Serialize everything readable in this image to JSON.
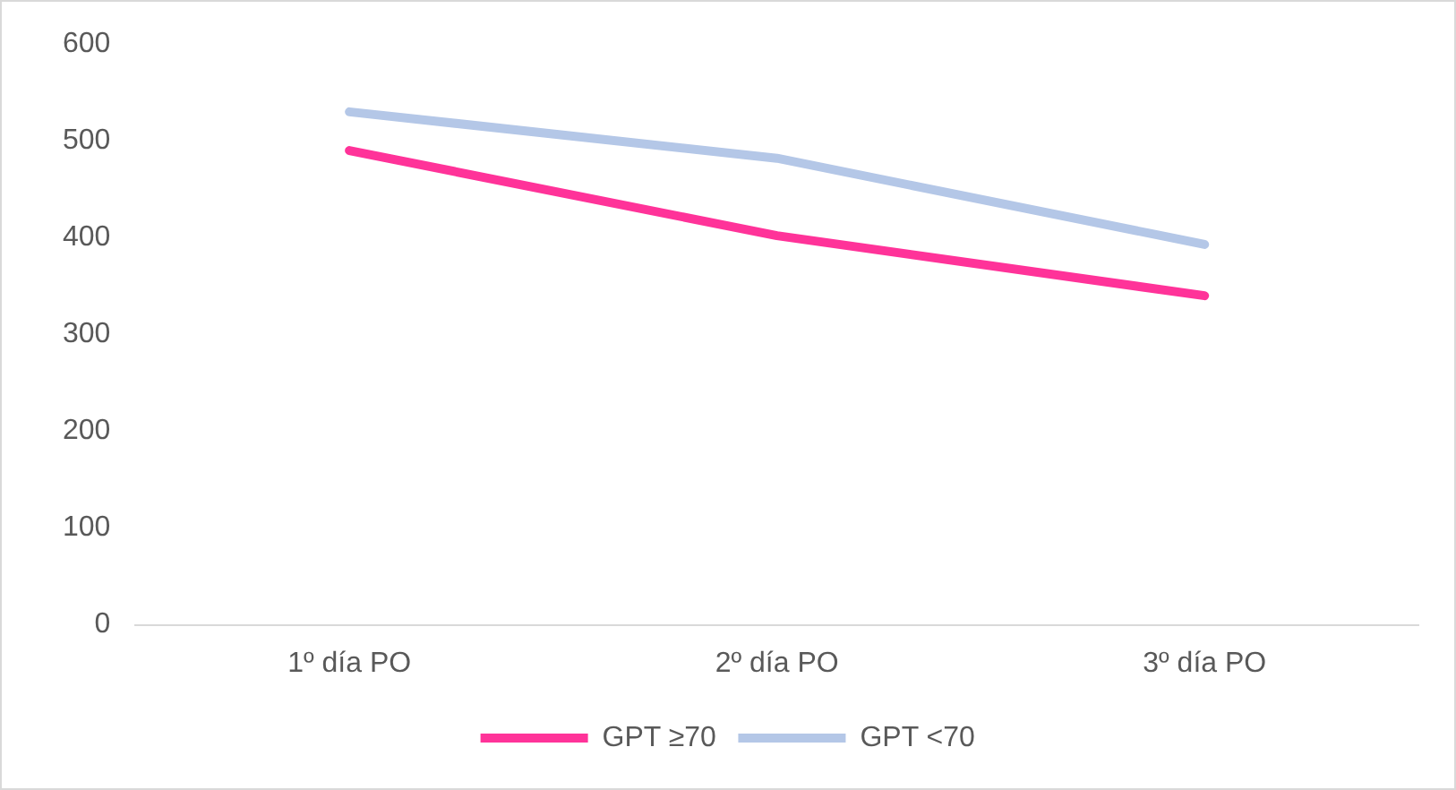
{
  "chart_data": {
    "type": "line",
    "categories": [
      "1º día PO",
      "2º día PO",
      "3º día PO"
    ],
    "series": [
      {
        "name": "GPT ≥70",
        "color": "#ff3399",
        "values": [
          490,
          402,
          340
        ]
      },
      {
        "name": "GPT <70",
        "color": "#b4c7e7",
        "values": [
          530,
          482,
          393
        ]
      }
    ],
    "ylim": [
      0,
      600
    ],
    "yticks": [
      0,
      100,
      200,
      300,
      400,
      500,
      600
    ],
    "grid": false,
    "legend": "bottom",
    "marker": "none"
  }
}
